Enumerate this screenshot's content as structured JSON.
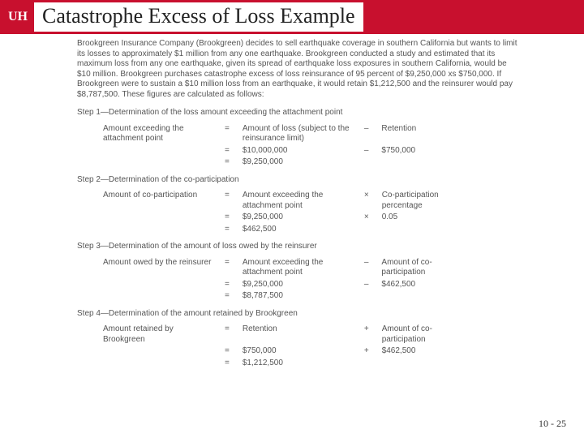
{
  "header": {
    "logo_text": "UH",
    "title": "Catastrophe Excess of Loss Example"
  },
  "intro": "Brookgreen Insurance Company (Brookgreen) decides to sell earthquake coverage in southern California but wants to limit its losses to approximately $1 million from any one earthquake. Brookgreen conducted a study and estimated that its maximum loss from any one earthquake, given its spread of earthquake loss exposures in southern California, would be $10 million. Brookgreen purchases catastrophe excess of loss reinsurance of 95 percent of $9,250,000 xs $750,000. If Brookgreen were to sustain a $10 million loss from an earthquake, it would retain $1,212,500 and the reinsurer would pay $8,787,500. These figures are calculated as follows:",
  "steps": {
    "s1": {
      "header": "Step 1—Determination of the loss amount exceeding the attachment point",
      "r1_left": "Amount exceeding the attachment point",
      "r1_mid": "Amount of loss (subject to the reinsurance limit)",
      "r1_op": "–",
      "r1_right": "Retention",
      "r2_mid": "$10,000,000",
      "r2_op": "–",
      "r2_right": "$750,000",
      "r3_mid": "$9,250,000"
    },
    "s2": {
      "header": "Step 2—Determination of the co-participation",
      "r1_left": "Amount of co-participation",
      "r1_mid": "Amount exceeding the attachment point",
      "r1_op": "×",
      "r1_right": "Co-participation percentage",
      "r2_mid": "$9,250,000",
      "r2_op": "×",
      "r2_right": "0.05",
      "r3_mid": "$462,500"
    },
    "s3": {
      "header": "Step 3—Determination of the amount of loss owed by the reinsurer",
      "r1_left": "Amount owed by the reinsurer",
      "r1_mid": "Amount exceeding the attachment point",
      "r1_op": "–",
      "r1_right": "Amount of co-participation",
      "r2_mid": "$9,250,000",
      "r2_op": "–",
      "r2_right": "$462,500",
      "r3_mid": "$8,787,500"
    },
    "s4": {
      "header": "Step 4—Determination of the amount retained by Brookgreen",
      "r1_left": "Amount retained by Brookgreen",
      "r1_mid": "Retention",
      "r1_op": "+",
      "r1_right": "Amount of co-participation",
      "r2_mid": "$750,000",
      "r2_op": "+",
      "r2_right": "$462,500",
      "r3_mid": "$1,212,500"
    }
  },
  "page_number": "10 - 25"
}
